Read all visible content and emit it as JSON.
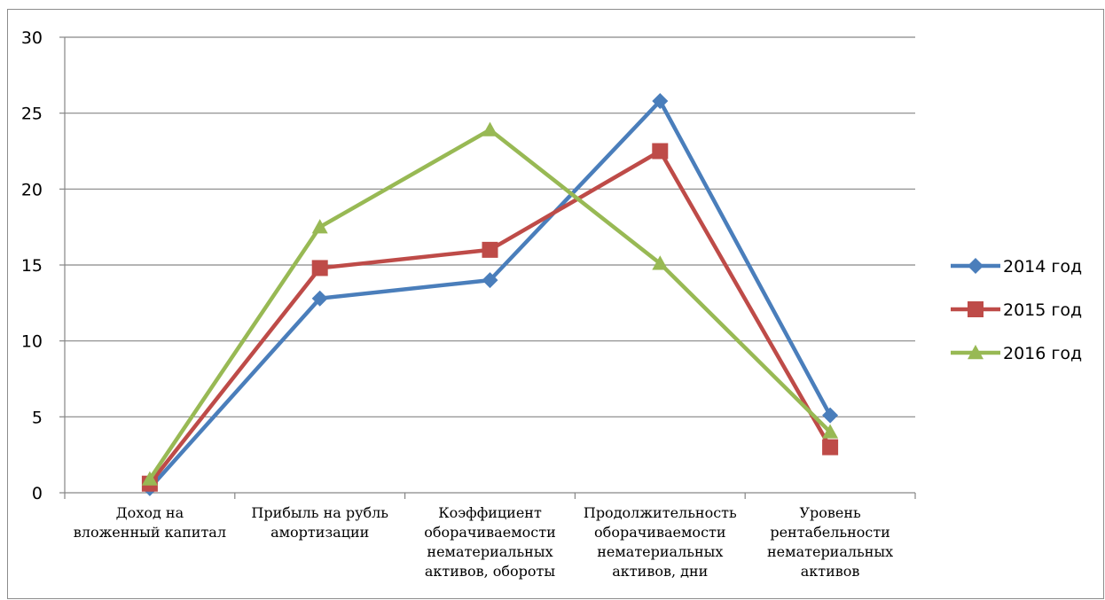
{
  "chart_data": {
    "type": "line",
    "title": "",
    "xlabel": "",
    "ylabel": "",
    "ylim": [
      0,
      30
    ],
    "yticks": [
      0,
      5,
      10,
      15,
      20,
      25,
      30
    ],
    "grid": true,
    "legend_position": "right",
    "categories": [
      [
        "Доход на",
        "вложенный капитал"
      ],
      [
        "Прибыль на рубль",
        "амортизации"
      ],
      [
        "Коэффициент",
        "оборачиваемости",
        "нематериальных",
        "активов, обороты"
      ],
      [
        "Продолжительность",
        "оборачиваемости",
        "нематериальных",
        "активов, дни"
      ],
      [
        "Уровень",
        "рентабельности",
        "нематериальных",
        "активов"
      ]
    ],
    "series": [
      {
        "name": "2014 год",
        "color": "#4a7ebb",
        "marker": "diamond",
        "values": [
          0.3,
          12.8,
          14.0,
          25.8,
          5.1
        ]
      },
      {
        "name": "2015 год",
        "color": "#be4b48",
        "marker": "square",
        "values": [
          0.6,
          14.8,
          16.0,
          22.5,
          3.0
        ]
      },
      {
        "name": "2016 год",
        "color": "#98b954",
        "marker": "triangle",
        "values": [
          0.9,
          17.5,
          23.9,
          15.1,
          4.0
        ]
      }
    ]
  }
}
